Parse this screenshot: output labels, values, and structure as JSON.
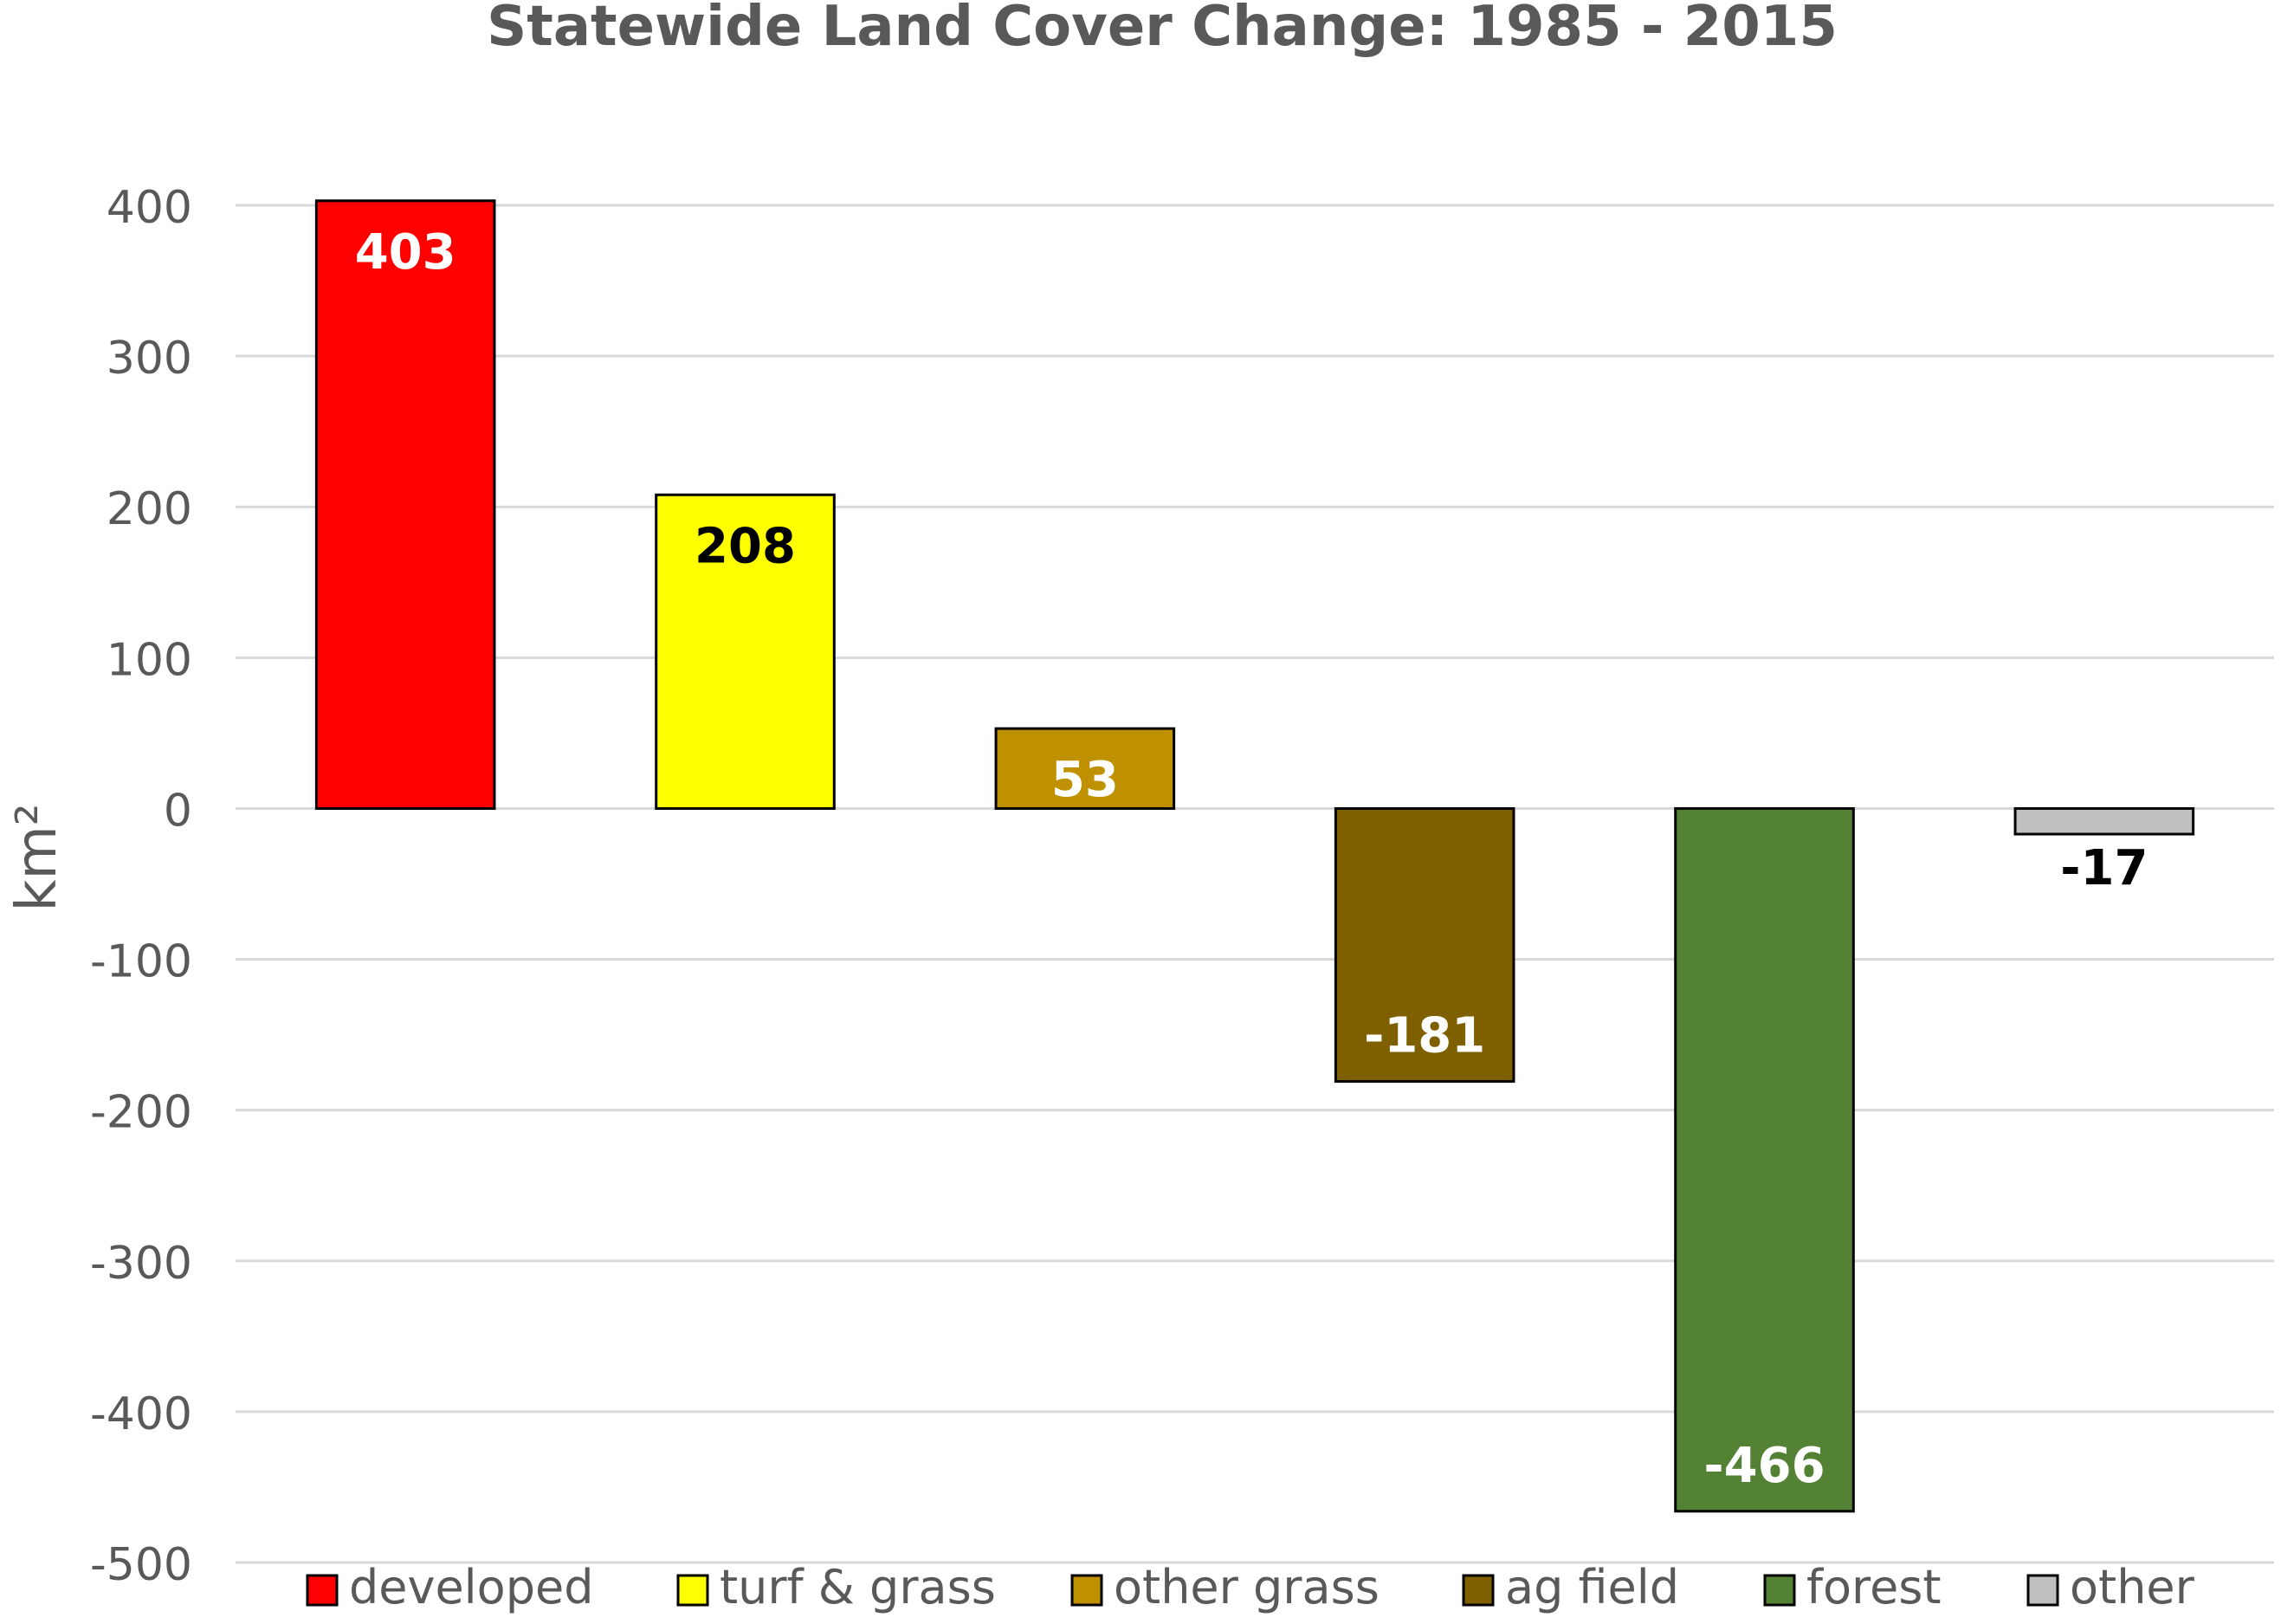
{
  "chart_data": {
    "type": "bar",
    "title": "Statewide Land Cover Change: 1985 - 2015",
    "xlabel": "",
    "ylabel": "km²",
    "ylim": [
      -500,
      400
    ],
    "yticks": [
      400,
      300,
      200,
      100,
      0,
      -100,
      -200,
      -300,
      -400,
      -500
    ],
    "grid": true,
    "legend_position": "bottom",
    "categories": [
      "developed",
      "turf & grass",
      "other grass",
      "ag field",
      "forest",
      "other"
    ],
    "values": [
      403,
      208,
      53,
      -181,
      -466,
      -17
    ],
    "colors": [
      "#ff0000",
      "#ffff00",
      "#bf9000",
      "#7f6000",
      "#548235",
      "#bfbfbf"
    ],
    "label_colors": [
      "#ffffff",
      "#000000",
      "#ffffff",
      "#ffffff",
      "#ffffff",
      "#000000"
    ],
    "data_labels": [
      "403",
      "208",
      "53",
      "-181",
      "-466",
      "-17"
    ],
    "grid_color": "#d9d9d9",
    "axis_color": "#d9d9d9",
    "text_color": "#595959"
  }
}
